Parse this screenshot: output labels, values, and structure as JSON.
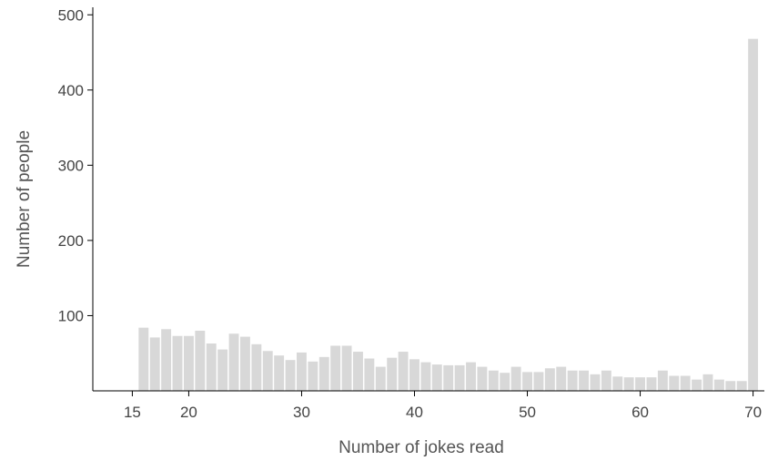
{
  "chart_data": {
    "type": "bar",
    "xlabel": "Number of jokes read",
    "ylabel": "Number of people",
    "xlim": [
      11.5,
      71
    ],
    "ylim": [
      0,
      510
    ],
    "x_ticks": [
      15,
      20,
      30,
      40,
      50,
      60,
      70
    ],
    "y_ticks": [
      100,
      200,
      300,
      400,
      500
    ],
    "grid": false,
    "bar_color": "#d8d8d8",
    "x": [
      16,
      17,
      18,
      19,
      20,
      21,
      22,
      23,
      24,
      25,
      26,
      27,
      28,
      29,
      30,
      31,
      32,
      33,
      34,
      35,
      36,
      37,
      38,
      39,
      40,
      41,
      42,
      43,
      44,
      45,
      46,
      47,
      48,
      49,
      50,
      51,
      52,
      53,
      54,
      55,
      56,
      57,
      58,
      59,
      60,
      61,
      62,
      63,
      64,
      65,
      66,
      67,
      68,
      69,
      70
    ],
    "values": [
      84,
      71,
      82,
      73,
      73,
      80,
      63,
      55,
      76,
      72,
      62,
      53,
      47,
      41,
      51,
      39,
      45,
      60,
      60,
      52,
      43,
      32,
      44,
      52,
      42,
      38,
      35,
      34,
      34,
      38,
      32,
      27,
      24,
      32,
      25,
      25,
      30,
      32,
      27,
      27,
      22,
      27,
      19,
      18,
      18,
      18,
      27,
      20,
      20,
      15,
      22,
      15,
      13,
      13,
      468
    ]
  }
}
